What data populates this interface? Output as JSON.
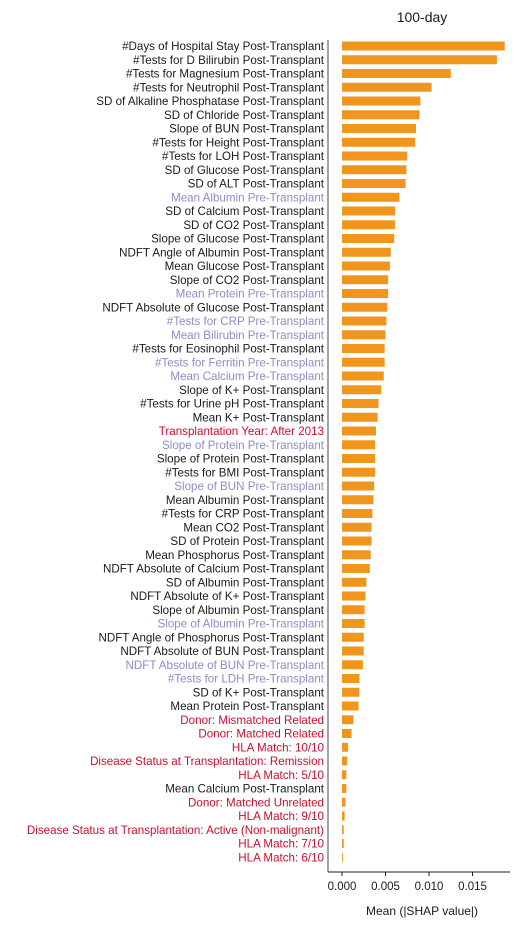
{
  "chart_data": {
    "type": "bar",
    "orientation": "horizontal",
    "title": "100-day",
    "xlabel": "Mean (|SHAP value|)",
    "ylabel": "",
    "xlim": [
      0,
      0.0185
    ],
    "xticks": [
      0.0,
      0.005,
      0.01,
      0.015
    ],
    "xtick_labels": [
      "0.000",
      "0.005",
      "0.010",
      "0.015"
    ],
    "grid": false,
    "bar_color": "#F0961E",
    "category_colors": {
      "post": "#1a1a1a",
      "pre": "#8E8CC8",
      "static": "#C8102E"
    },
    "categories": [
      {
        "label": "#Days of Hospital Stay Post-Transplant",
        "value": 0.0187,
        "group": "post"
      },
      {
        "label": "#Tests for D Bilirubin Post-Transplant",
        "value": 0.0178,
        "group": "post"
      },
      {
        "label": "#Tests for Magnesium Post-Transplant",
        "value": 0.0125,
        "group": "post"
      },
      {
        "label": "#Tests for Neutrophil Post-Transplant",
        "value": 0.0103,
        "group": "post"
      },
      {
        "label": "SD of Alkaline Phosphatase Post-Transplant",
        "value": 0.009,
        "group": "post"
      },
      {
        "label": "SD of Chloride Post-Transplant",
        "value": 0.0089,
        "group": "post"
      },
      {
        "label": "Slope of BUN Post-Transplant",
        "value": 0.0085,
        "group": "post"
      },
      {
        "label": "#Tests for Height Post-Transplant",
        "value": 0.0084,
        "group": "post"
      },
      {
        "label": "#Tests for LOH Post-Transplant",
        "value": 0.0075,
        "group": "post"
      },
      {
        "label": "SD of Glucose Post-Transplant",
        "value": 0.0074,
        "group": "post"
      },
      {
        "label": "SD of ALT Post-Transplant",
        "value": 0.0073,
        "group": "post"
      },
      {
        "label": "Mean Albumin Pre-Transplant",
        "value": 0.0066,
        "group": "pre"
      },
      {
        "label": "SD of Calcium Post-Transplant",
        "value": 0.0061,
        "group": "post"
      },
      {
        "label": "SD of CO2 Post-Transplant",
        "value": 0.0061,
        "group": "post"
      },
      {
        "label": "Slope of Glucose Post-Transplant",
        "value": 0.006,
        "group": "post"
      },
      {
        "label": "NDFT Angle of Albumin Post-Transplant",
        "value": 0.0056,
        "group": "post"
      },
      {
        "label": "Mean Glucose Post-Transplant",
        "value": 0.0055,
        "group": "post"
      },
      {
        "label": "Slope of CO2 Post-Transplant",
        "value": 0.0053,
        "group": "post"
      },
      {
        "label": "Mean Protein Pre-Transplant",
        "value": 0.0053,
        "group": "pre"
      },
      {
        "label": "NDFT Absolute of Glucose Post-Transplant",
        "value": 0.0052,
        "group": "post"
      },
      {
        "label": "#Tests for CRP Pre-Transplant",
        "value": 0.0051,
        "group": "pre"
      },
      {
        "label": "Mean Bilirubin Pre-Transplant",
        "value": 0.005,
        "group": "pre"
      },
      {
        "label": "#Tests for Eosinophil Post-Transplant",
        "value": 0.0049,
        "group": "post"
      },
      {
        "label": "#Tests for Ferritin Pre-Transplant",
        "value": 0.0049,
        "group": "pre"
      },
      {
        "label": "Mean Calcium Pre-Transplant",
        "value": 0.0048,
        "group": "pre"
      },
      {
        "label": "Slope of K+ Post-Transplant",
        "value": 0.0045,
        "group": "post"
      },
      {
        "label": "#Tests for Urine pH Post-Transplant",
        "value": 0.0042,
        "group": "post"
      },
      {
        "label": "Mean K+ Post-Transplant",
        "value": 0.0041,
        "group": "post"
      },
      {
        "label": "Transplantation Year: After 2013",
        "value": 0.0039,
        "group": "static"
      },
      {
        "label": "Slope of Protein Pre-Transplant",
        "value": 0.0038,
        "group": "pre"
      },
      {
        "label": "Slope of Protein Post-Transplant",
        "value": 0.0038,
        "group": "post"
      },
      {
        "label": "#Tests for BMI Post-Transplant",
        "value": 0.0038,
        "group": "post"
      },
      {
        "label": "Slope of BUN Pre-Transplant",
        "value": 0.0037,
        "group": "pre"
      },
      {
        "label": "Mean Albumin Post-Transplant",
        "value": 0.0036,
        "group": "post"
      },
      {
        "label": "#Tests for CRP Post-Transplant",
        "value": 0.0035,
        "group": "post"
      },
      {
        "label": "Mean CO2 Post-Transplant",
        "value": 0.0034,
        "group": "post"
      },
      {
        "label": "SD of Protein Post-Transplant",
        "value": 0.0034,
        "group": "post"
      },
      {
        "label": "Mean Phosphorus Post-Transplant",
        "value": 0.0033,
        "group": "post"
      },
      {
        "label": "NDFT Absolute of Calcium Post-Transplant",
        "value": 0.0032,
        "group": "post"
      },
      {
        "label": "SD of Albumin Post-Transplant",
        "value": 0.0028,
        "group": "post"
      },
      {
        "label": "NDFT Absolute of K+ Post-Transplant",
        "value": 0.0027,
        "group": "post"
      },
      {
        "label": "Slope of Albumin Post-Transplant",
        "value": 0.0026,
        "group": "post"
      },
      {
        "label": "Slope of Albumin Pre-Transplant",
        "value": 0.0026,
        "group": "pre"
      },
      {
        "label": "NDFT Angle of Phosphorus Post-Transplant",
        "value": 0.0025,
        "group": "post"
      },
      {
        "label": "NDFT Absolute of BUN Post-Transplant",
        "value": 0.0025,
        "group": "post"
      },
      {
        "label": "NDFT Absolute of BUN Pre-Transplant",
        "value": 0.0024,
        "group": "pre"
      },
      {
        "label": "#Tests for LDH Pre-Transplant",
        "value": 0.002,
        "group": "pre"
      },
      {
        "label": "SD of K+ Post-Transplant",
        "value": 0.002,
        "group": "post"
      },
      {
        "label": "Mean Protein Post-Transplant",
        "value": 0.0019,
        "group": "post"
      },
      {
        "label": "Donor: Mismatched Related",
        "value": 0.0013,
        "group": "static"
      },
      {
        "label": "Donor: Matched Related",
        "value": 0.0011,
        "group": "static"
      },
      {
        "label": "HLA Match: 10/10",
        "value": 0.0007,
        "group": "static"
      },
      {
        "label": "Disease Status at Transplantation: Remission",
        "value": 0.0006,
        "group": "static"
      },
      {
        "label": "HLA Match: 5/10",
        "value": 0.0005,
        "group": "static"
      },
      {
        "label": "Mean Calcium Post-Transplant",
        "value": 0.0005,
        "group": "post"
      },
      {
        "label": "Donor: Matched Unrelated",
        "value": 0.0004,
        "group": "static"
      },
      {
        "label": "HLA Match: 9/10",
        "value": 0.0003,
        "group": "static"
      },
      {
        "label": "Disease Status at Transplantation: Active (Non-malignant)",
        "value": 0.0002,
        "group": "static"
      },
      {
        "label": "HLA Match: 7/10",
        "value": 0.0002,
        "group": "static"
      },
      {
        "label": "HLA Match: 6/10",
        "value": 0.0001,
        "group": "static"
      }
    ]
  }
}
